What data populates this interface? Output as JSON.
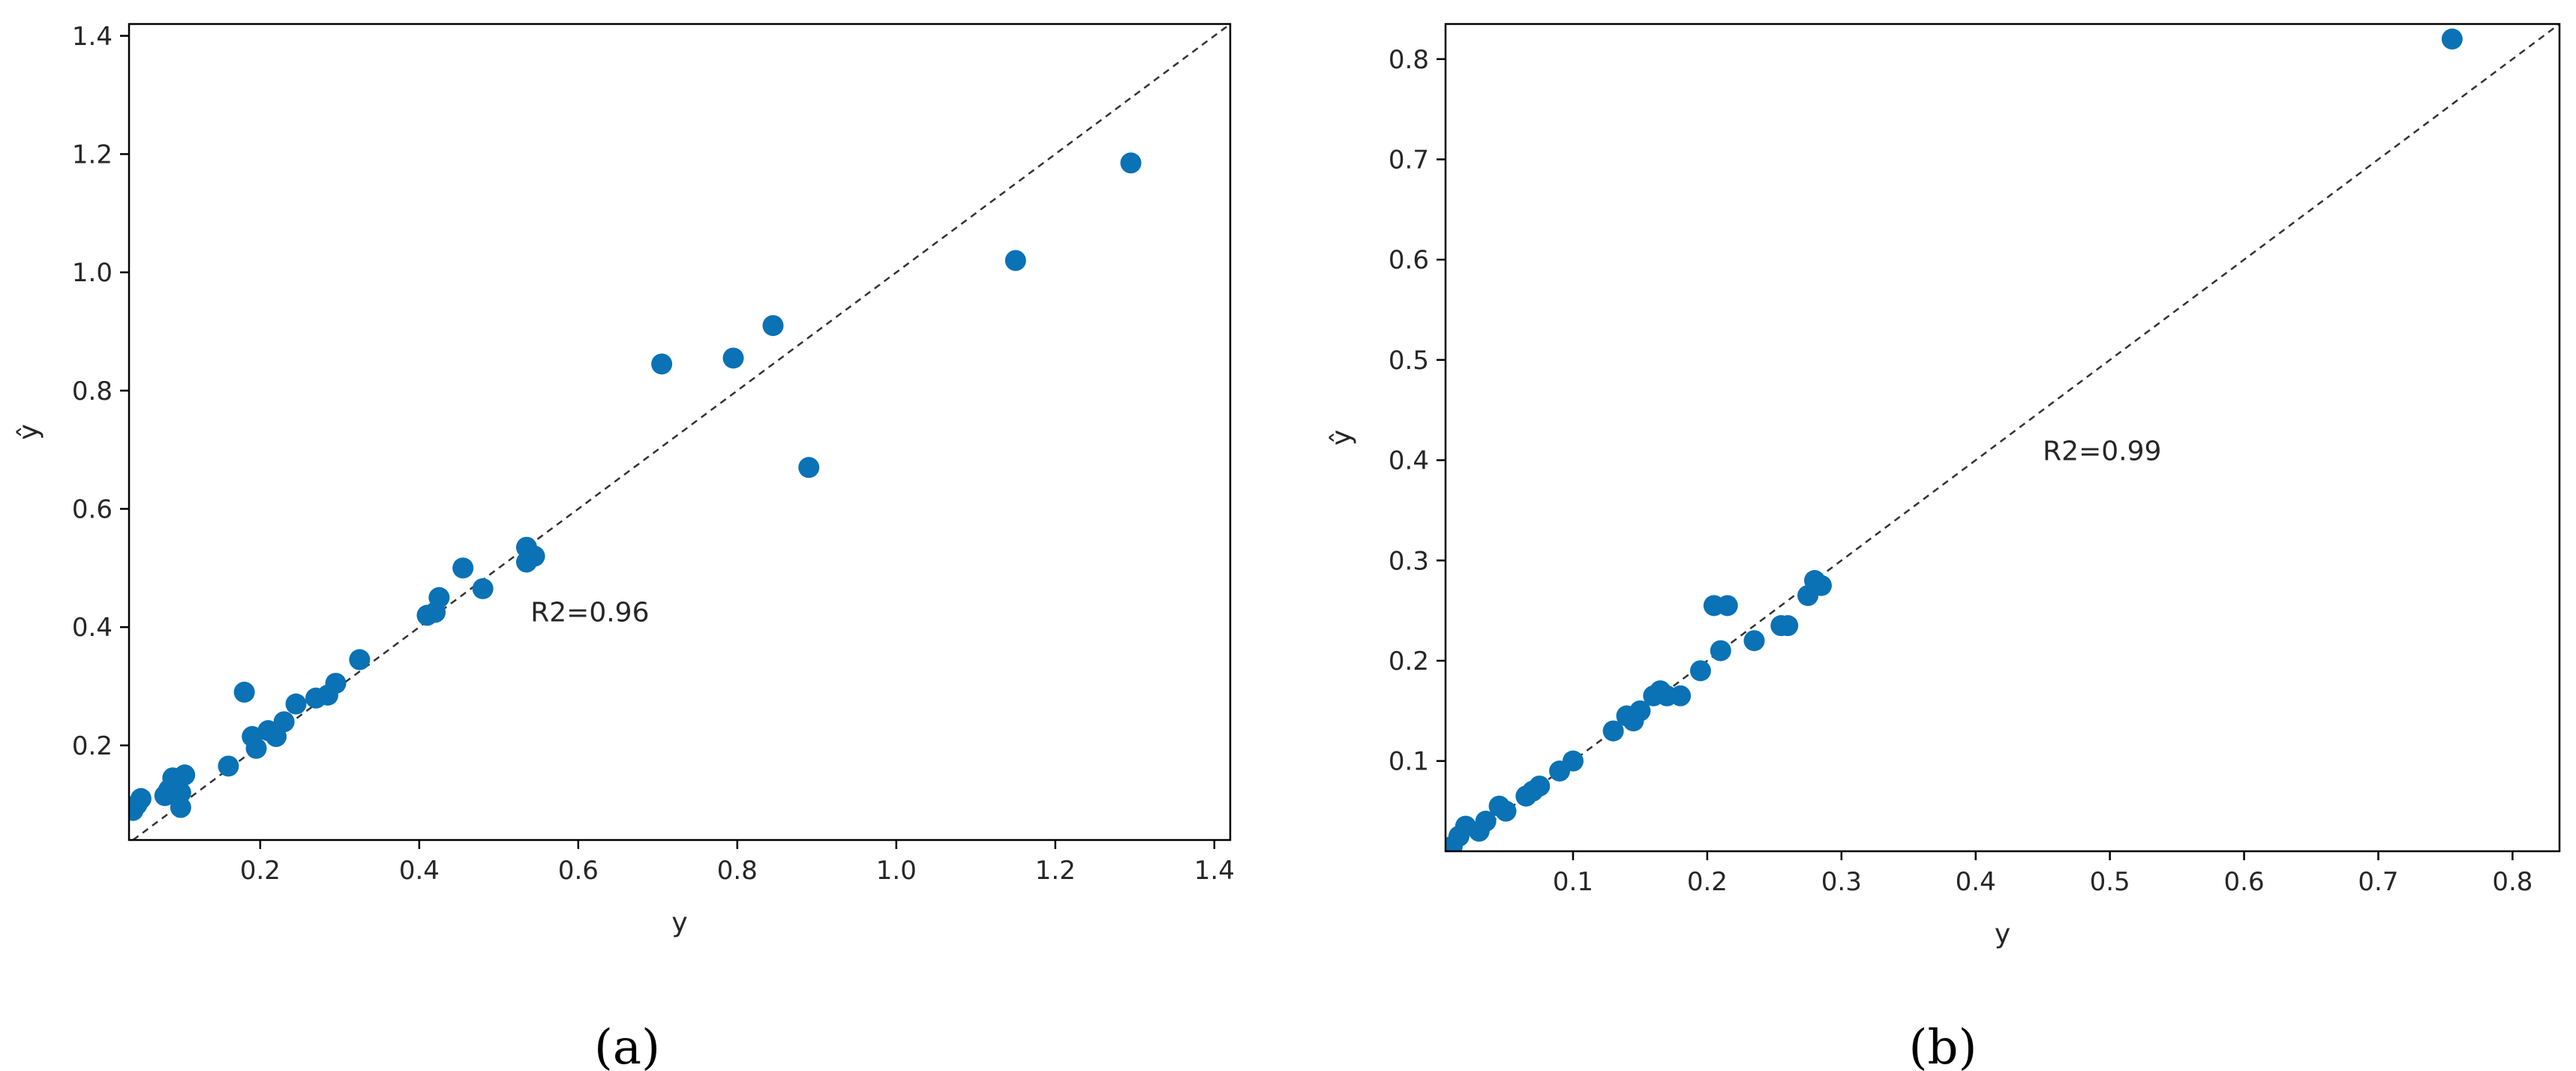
{
  "colors": {
    "marker": "#0a72b5",
    "frame": "#000000",
    "identity_line": "#333333"
  },
  "chart_data": [
    {
      "type": "scatter",
      "panel_label": "(a)",
      "xlabel": "y",
      "ylabel": "ŷ",
      "xlim": [
        0.035,
        1.42
      ],
      "ylim": [
        0.04,
        1.42
      ],
      "xticks": [
        0.2,
        0.4,
        0.6,
        0.8,
        1.0,
        1.2,
        1.4
      ],
      "yticks": [
        0.2,
        0.4,
        0.6,
        0.8,
        1.0,
        1.2,
        1.4
      ],
      "xtick_labels": [
        "0.2",
        "0.4",
        "0.6",
        "0.8",
        "1.0",
        "1.2",
        "1.4"
      ],
      "ytick_labels": [
        "0.2",
        "0.4",
        "0.6",
        "0.8",
        "1.0",
        "1.2",
        "1.4"
      ],
      "annotation": {
        "text": "R2=0.96",
        "x": 0.54,
        "y": 0.41
      },
      "identity_line": true,
      "grid": false,
      "points": [
        [
          0.04,
          0.09
        ],
        [
          0.045,
          0.1
        ],
        [
          0.05,
          0.11
        ],
        [
          0.08,
          0.115
        ],
        [
          0.085,
          0.125
        ],
        [
          0.09,
          0.145
        ],
        [
          0.095,
          0.13
        ],
        [
          0.1,
          0.12
        ],
        [
          0.1,
          0.095
        ],
        [
          0.105,
          0.15
        ],
        [
          0.16,
          0.165
        ],
        [
          0.18,
          0.29
        ],
        [
          0.19,
          0.215
        ],
        [
          0.195,
          0.195
        ],
        [
          0.21,
          0.225
        ],
        [
          0.22,
          0.215
        ],
        [
          0.23,
          0.24
        ],
        [
          0.245,
          0.27
        ],
        [
          0.27,
          0.28
        ],
        [
          0.285,
          0.285
        ],
        [
          0.295,
          0.305
        ],
        [
          0.325,
          0.345
        ],
        [
          0.41,
          0.42
        ],
        [
          0.42,
          0.425
        ],
        [
          0.425,
          0.45
        ],
        [
          0.455,
          0.5
        ],
        [
          0.48,
          0.465
        ],
        [
          0.535,
          0.535
        ],
        [
          0.535,
          0.51
        ],
        [
          0.545,
          0.52
        ],
        [
          0.705,
          0.845
        ],
        [
          0.795,
          0.855
        ],
        [
          0.845,
          0.91
        ],
        [
          0.89,
          0.67
        ],
        [
          1.15,
          1.02
        ],
        [
          1.295,
          1.185
        ]
      ]
    },
    {
      "type": "scatter",
      "panel_label": "(b)",
      "xlabel": "y",
      "ylabel": "ŷ",
      "xlim": [
        0.005,
        0.835
      ],
      "ylim": [
        0.01,
        0.835
      ],
      "xticks": [
        0.1,
        0.2,
        0.3,
        0.4,
        0.5,
        0.6,
        0.7,
        0.8
      ],
      "yticks": [
        0.1,
        0.2,
        0.3,
        0.4,
        0.5,
        0.6,
        0.7,
        0.8
      ],
      "xtick_labels": [
        "0.1",
        "0.2",
        "0.3",
        "0.4",
        "0.5",
        "0.6",
        "0.7",
        "0.8"
      ],
      "ytick_labels": [
        "0.1",
        "0.2",
        "0.3",
        "0.4",
        "0.5",
        "0.6",
        "0.7",
        "0.8"
      ],
      "annotation": {
        "text": "R2=0.99",
        "x": 0.45,
        "y": 0.4
      },
      "identity_line": true,
      "grid": false,
      "points": [
        [
          0.01,
          0.015
        ],
        [
          0.015,
          0.025
        ],
        [
          0.02,
          0.035
        ],
        [
          0.03,
          0.03
        ],
        [
          0.035,
          0.04
        ],
        [
          0.045,
          0.055
        ],
        [
          0.05,
          0.05
        ],
        [
          0.065,
          0.065
        ],
        [
          0.07,
          0.07
        ],
        [
          0.075,
          0.075
        ],
        [
          0.09,
          0.09
        ],
        [
          0.1,
          0.1
        ],
        [
          0.13,
          0.13
        ],
        [
          0.14,
          0.145
        ],
        [
          0.145,
          0.14
        ],
        [
          0.15,
          0.15
        ],
        [
          0.16,
          0.165
        ],
        [
          0.165,
          0.17
        ],
        [
          0.17,
          0.165
        ],
        [
          0.18,
          0.165
        ],
        [
          0.195,
          0.19
        ],
        [
          0.205,
          0.255
        ],
        [
          0.21,
          0.21
        ],
        [
          0.215,
          0.255
        ],
        [
          0.235,
          0.22
        ],
        [
          0.255,
          0.235
        ],
        [
          0.26,
          0.235
        ],
        [
          0.275,
          0.265
        ],
        [
          0.28,
          0.28
        ],
        [
          0.285,
          0.275
        ],
        [
          0.755,
          0.82
        ]
      ]
    }
  ]
}
